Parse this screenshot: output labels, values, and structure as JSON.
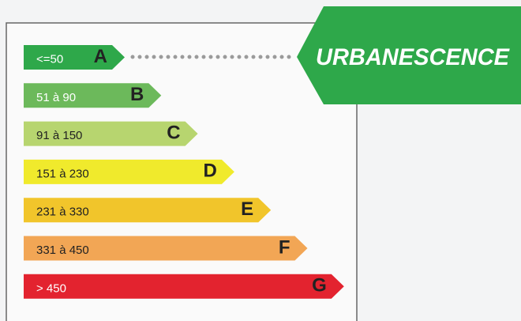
{
  "bands": [
    {
      "range": "<=50",
      "letter": "A",
      "color": "#2ea84a"
    },
    {
      "range": "51 à 90",
      "letter": "B",
      "color": "#6cb95b"
    },
    {
      "range": "91 à 150",
      "letter": "C",
      "color": "#b7d56f"
    },
    {
      "range": "151 à 230",
      "letter": "D",
      "color": "#f0ea2c"
    },
    {
      "range": "231 à 330",
      "letter": "E",
      "color": "#f1c52b"
    },
    {
      "range": "331 à 450",
      "letter": "F",
      "color": "#f2a655"
    },
    {
      "range": "> 450",
      "letter": "G",
      "color": "#e3232f"
    }
  ],
  "brand": "URBANESCENCE"
}
